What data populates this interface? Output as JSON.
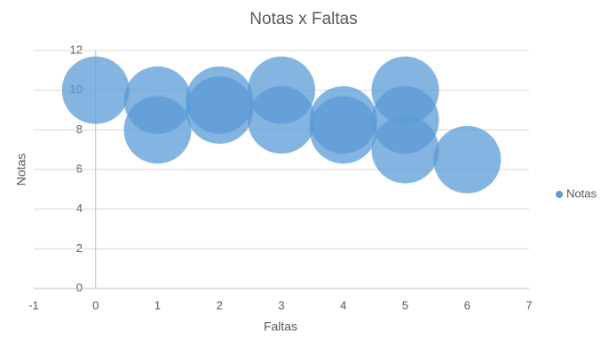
{
  "chart_data": {
    "type": "bubble",
    "title": "Notas x Faltas",
    "x_label": "Faltas",
    "y_label": "Notas",
    "x": [
      0,
      1,
      1,
      2,
      2,
      3,
      3,
      4,
      4,
      5,
      5,
      5,
      6
    ],
    "series": [
      {
        "name": "Notas",
        "color": "#5b9bd5",
        "values": [
          10,
          9.5,
          8,
          9.5,
          9,
          10,
          8.5,
          8.5,
          8,
          10,
          8.5,
          7,
          6.5
        ]
      }
    ],
    "xlim": [
      -1,
      7
    ],
    "xticks": [
      -1,
      0,
      1,
      2,
      3,
      4,
      5,
      6,
      7
    ],
    "ylim": [
      0,
      12
    ],
    "yticks": [
      0,
      2,
      4,
      6,
      8,
      10,
      12
    ],
    "grid": true,
    "legend": "right"
  }
}
